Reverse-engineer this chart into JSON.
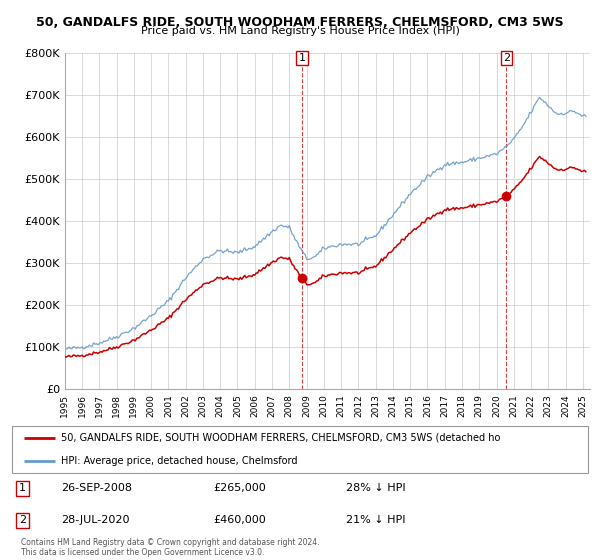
{
  "title": "50, GANDALFS RIDE, SOUTH WOODHAM FERRERS, CHELMSFORD, CM3 5WS",
  "subtitle": "Price paid vs. HM Land Registry's House Price Index (HPI)",
  "legend_line1": "50, GANDALFS RIDE, SOUTH WOODHAM FERRERS, CHELMSFORD, CM3 5WS (detached ho",
  "legend_line2": "HPI: Average price, detached house, Chelmsford",
  "annotation1_label": "1",
  "annotation1_date": "26-SEP-2008",
  "annotation1_price": "£265,000",
  "annotation1_hpi": "28% ↓ HPI",
  "annotation2_label": "2",
  "annotation2_date": "28-JUL-2020",
  "annotation2_price": "£460,000",
  "annotation2_hpi": "21% ↓ HPI",
  "copyright": "Contains HM Land Registry data © Crown copyright and database right 2024.\nThis data is licensed under the Open Government Licence v3.0.",
  "sale1_year": 2008.74,
  "sale1_value": 265000,
  "sale2_year": 2020.57,
  "sale2_value": 460000,
  "red_color": "#cc0000",
  "blue_color": "#6699cc",
  "dot_color": "#cc0000",
  "vline_color": "#cc0000",
  "background_color": "#ffffff",
  "grid_color": "#cccccc",
  "ylim": [
    0,
    800000
  ],
  "yticks": [
    0,
    100000,
    200000,
    300000,
    400000,
    500000,
    600000,
    700000,
    800000
  ],
  "ytick_labels": [
    "£0",
    "£100K",
    "£200K",
    "£300K",
    "£400K",
    "£500K",
    "£600K",
    "£700K",
    "£800K"
  ],
  "hpi_anchors_years": [
    1995.0,
    1996.0,
    1997.0,
    1998.0,
    1999.0,
    2000.0,
    2001.0,
    2002.0,
    2003.0,
    2004.0,
    2005.0,
    2006.0,
    2007.0,
    2007.5,
    2008.0,
    2008.5,
    2009.0,
    2009.5,
    2010.0,
    2011.0,
    2012.0,
    2013.0,
    2014.0,
    2015.0,
    2016.0,
    2017.0,
    2018.0,
    2019.0,
    2020.0,
    2020.5,
    2021.0,
    2021.5,
    2022.0,
    2022.5,
    2023.0,
    2023.5,
    2024.0,
    2024.5,
    2025.0
  ],
  "hpi_anchors_vals": [
    95000,
    100000,
    110000,
    125000,
    145000,
    175000,
    210000,
    265000,
    310000,
    330000,
    325000,
    340000,
    375000,
    390000,
    385000,
    345000,
    310000,
    315000,
    335000,
    345000,
    345000,
    365000,
    415000,
    465000,
    505000,
    535000,
    540000,
    550000,
    560000,
    575000,
    595000,
    625000,
    660000,
    695000,
    675000,
    655000,
    658000,
    662000,
    650000
  ]
}
